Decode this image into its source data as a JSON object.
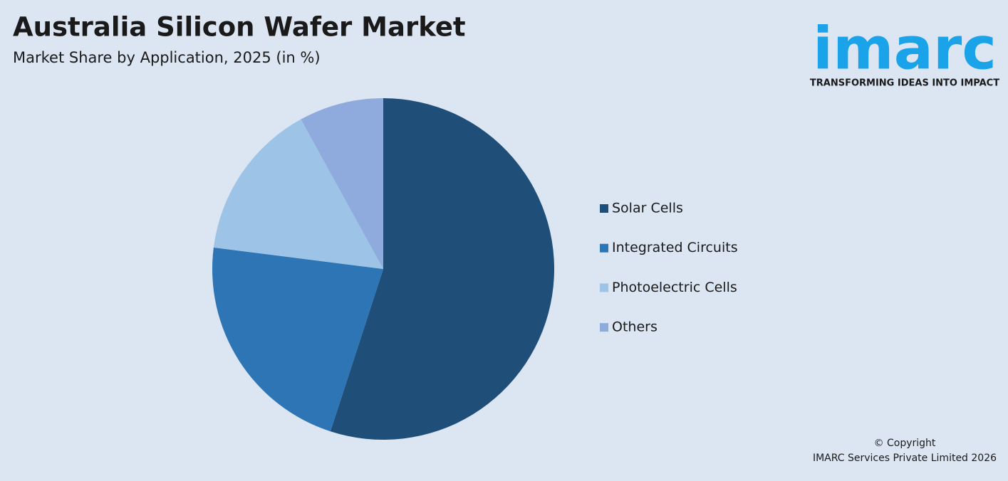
{
  "chart_data": {
    "type": "pie",
    "title": "Australia Silicon Wafer Market",
    "subtitle": "Market Share by Application, 2025 (in %)",
    "categories": [
      "Solar Cells",
      "Integrated Circuits",
      "Photoelectric Cells",
      "Others"
    ],
    "values": [
      55,
      22,
      15,
      8
    ],
    "colors": [
      "#1f4e79",
      "#2e75b6",
      "#9dc3e6",
      "#8faadc"
    ],
    "legend": "right"
  },
  "logo": {
    "name": "imarc",
    "tagline": "TRANSFORMING IDEAS INTO IMPACT"
  },
  "footer": {
    "line1": "© Copyright",
    "line2": "IMARC Services Private Limited 2026"
  }
}
